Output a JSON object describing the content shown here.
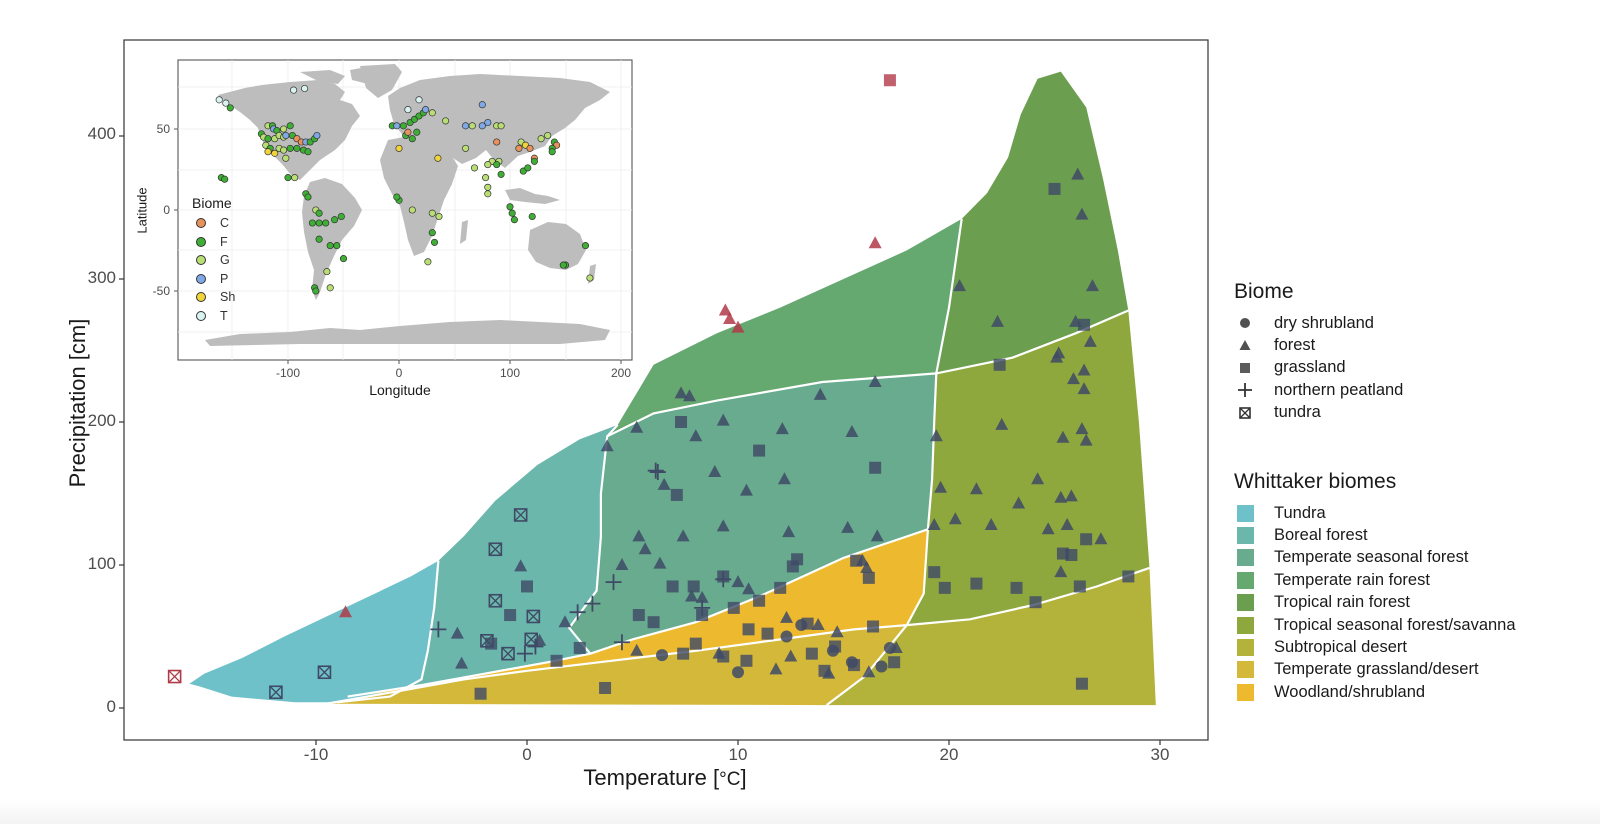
{
  "chart_data": {
    "type": "scatter",
    "title": "",
    "xlabel": "Temperature [°C]",
    "ylabel": "Precipitation [cm]",
    "xlim": [
      -18,
      32
    ],
    "ylim": [
      -20,
      445
    ],
    "x_ticks": [
      "-10",
      "0",
      "10",
      "20",
      "30"
    ],
    "y_ticks": [
      "0",
      "100",
      "200",
      "300",
      "400"
    ],
    "grid": false,
    "legend_position": "right",
    "background_regions": {
      "legend_title": "Whittaker biomes",
      "items": [
        {
          "name": "Tundra",
          "color": "#6FC1C9"
        },
        {
          "name": "Boreal forest",
          "color": "#6BB7AC"
        },
        {
          "name": "Temperate seasonal forest",
          "color": "#68AB8E"
        },
        {
          "name": "Temperate rain forest",
          "color": "#66A970"
        },
        {
          "name": "Tropical rain forest",
          "color": "#6C9E4F"
        },
        {
          "name": "Tropical seasonal forest/savanna",
          "color": "#8FA83D"
        },
        {
          "name": "Subtropical desert",
          "color": "#B3B23A"
        },
        {
          "name": "Temperate grassland/desert",
          "color": "#D4B83A"
        },
        {
          "name": "Woodland/shrubland",
          "color": "#EDB92F"
        }
      ]
    },
    "shape_legend": {
      "title": "Biome",
      "items": [
        {
          "name": "dry shrubland",
          "shape": "circle"
        },
        {
          "name": "forest",
          "shape": "triangle"
        },
        {
          "name": "grassland",
          "shape": "square"
        },
        {
          "name": "northern peatland",
          "shape": "plus"
        },
        {
          "name": "tundra",
          "shape": "boxed-x"
        }
      ]
    },
    "point_colors": {
      "inside": "#3F4A66",
      "outlier": "#B03A48"
    },
    "series": [
      {
        "name": "forest",
        "shape": "triangle",
        "points": [
          [
            -8.6,
            67,
            "outlier"
          ],
          [
            9.4,
            278,
            "outlier"
          ],
          [
            9.6,
            272,
            "outlier"
          ],
          [
            10,
            266,
            "outlier"
          ],
          [
            16.5,
            325,
            "outlier"
          ],
          [
            -0.3,
            99
          ],
          [
            -3.3,
            52
          ],
          [
            -3.1,
            31
          ],
          [
            0.6,
            47
          ],
          [
            1.8,
            60
          ],
          [
            3.8,
            183
          ],
          [
            7.3,
            220
          ],
          [
            9.3,
            201
          ],
          [
            8,
            190
          ],
          [
            5.2,
            196
          ],
          [
            12.1,
            195
          ],
          [
            15.4,
            193
          ],
          [
            7.7,
            218
          ],
          [
            8.9,
            165
          ],
          [
            10.4,
            152
          ],
          [
            12.2,
            160
          ],
          [
            16.5,
            228
          ],
          [
            13.9,
            219
          ],
          [
            6.5,
            156
          ],
          [
            5.3,
            120
          ],
          [
            7.4,
            120
          ],
          [
            9.3,
            127
          ],
          [
            12.4,
            123
          ],
          [
            15.2,
            126
          ],
          [
            16.6,
            120
          ],
          [
            4.5,
            100
          ],
          [
            5.6,
            111
          ],
          [
            6.3,
            101
          ],
          [
            7.8,
            78
          ],
          [
            8.3,
            77
          ],
          [
            10,
            88
          ],
          [
            10.5,
            83
          ],
          [
            12.3,
            63
          ],
          [
            13.8,
            58
          ],
          [
            14.7,
            53
          ],
          [
            15.9,
            103
          ],
          [
            16.1,
            98
          ],
          [
            12.5,
            36
          ],
          [
            14.3,
            24
          ],
          [
            9.1,
            38
          ],
          [
            5.2,
            40
          ],
          [
            11.8,
            27
          ],
          [
            19.4,
            190
          ],
          [
            19.6,
            154
          ],
          [
            19.3,
            128
          ],
          [
            20.3,
            132
          ],
          [
            21.3,
            153
          ],
          [
            22,
            128
          ],
          [
            22.5,
            198
          ],
          [
            23.3,
            143
          ],
          [
            24.2,
            160
          ],
          [
            25.3,
            147
          ],
          [
            25.8,
            148
          ],
          [
            24.7,
            125
          ],
          [
            25.6,
            128
          ],
          [
            20.5,
            295
          ],
          [
            22.3,
            270
          ],
          [
            25.1,
            245
          ],
          [
            25.2,
            248
          ],
          [
            26.1,
            373
          ],
          [
            26.3,
            345
          ],
          [
            26.8,
            295
          ],
          [
            26,
            270
          ],
          [
            26.7,
            256
          ],
          [
            26.4,
            236
          ],
          [
            26.4,
            223
          ],
          [
            25.9,
            230
          ],
          [
            26.3,
            195
          ],
          [
            26.5,
            187
          ],
          [
            25.4,
            189
          ],
          [
            25.3,
            95
          ],
          [
            27.2,
            118
          ],
          [
            16.2,
            25
          ],
          [
            17.5,
            42
          ]
        ]
      },
      {
        "name": "grassland",
        "shape": "square",
        "points": [
          [
            17.2,
            439,
            "outlier"
          ],
          [
            7.3,
            200
          ],
          [
            11,
            180
          ],
          [
            16.5,
            168
          ],
          [
            7.1,
            149
          ],
          [
            25,
            363
          ],
          [
            22.4,
            240
          ],
          [
            26.4,
            268
          ],
          [
            0,
            85
          ],
          [
            -0.8,
            65
          ],
          [
            -2.2,
            10
          ],
          [
            -1.7,
            45
          ],
          [
            3.7,
            14
          ],
          [
            1.4,
            33
          ],
          [
            2.5,
            42
          ],
          [
            5.3,
            65
          ],
          [
            6.9,
            85
          ],
          [
            7.9,
            85
          ],
          [
            9.3,
            92
          ],
          [
            9.8,
            70
          ],
          [
            11,
            75
          ],
          [
            12,
            84
          ],
          [
            12.6,
            99
          ],
          [
            8.3,
            65
          ],
          [
            10.5,
            55
          ],
          [
            11.4,
            52
          ],
          [
            13.3,
            59
          ],
          [
            7.4,
            38
          ],
          [
            9.3,
            36
          ],
          [
            10.4,
            33
          ],
          [
            13.5,
            38
          ],
          [
            14.1,
            26
          ],
          [
            15.5,
            30
          ],
          [
            16.4,
            57
          ],
          [
            17.4,
            32
          ],
          [
            8,
            45
          ],
          [
            6,
            60
          ],
          [
            14.6,
            43
          ],
          [
            19.3,
            95
          ],
          [
            19.8,
            84
          ],
          [
            21.3,
            87
          ],
          [
            23.2,
            84
          ],
          [
            24.1,
            74
          ],
          [
            26.2,
            85
          ],
          [
            26.3,
            17
          ],
          [
            25.4,
            108
          ],
          [
            25.8,
            107
          ],
          [
            26.5,
            118
          ],
          [
            28.5,
            92
          ],
          [
            15.6,
            103
          ],
          [
            16.2,
            91
          ],
          [
            12.8,
            104
          ]
        ]
      },
      {
        "name": "dry shrubland",
        "shape": "circle",
        "points": [
          [
            6.4,
            37
          ],
          [
            10,
            25
          ],
          [
            13,
            58
          ],
          [
            14.5,
            40
          ],
          [
            15.4,
            32
          ],
          [
            16.8,
            29
          ],
          [
            17.2,
            42
          ],
          [
            12.3,
            50
          ]
        ]
      },
      {
        "name": "northern peatland",
        "shape": "plus",
        "points": [
          [
            -4.2,
            55
          ],
          [
            -0.1,
            38
          ],
          [
            3.1,
            73
          ],
          [
            2.4,
            67
          ],
          [
            4.1,
            88
          ],
          [
            4.5,
            46
          ],
          [
            6.1,
            166
          ],
          [
            6.2,
            165
          ],
          [
            9.3,
            90
          ],
          [
            0.4,
            43
          ],
          [
            8.3,
            70
          ]
        ]
      },
      {
        "name": "tundra",
        "shape": "boxed-x",
        "points": [
          [
            -16.7,
            22,
            "outlier"
          ],
          [
            -11.9,
            11
          ],
          [
            -9.6,
            25
          ],
          [
            -0.3,
            135
          ],
          [
            -1.5,
            111
          ],
          [
            -1.5,
            75
          ],
          [
            -1.9,
            47
          ],
          [
            -0.9,
            38
          ],
          [
            0.3,
            64
          ],
          [
            0.2,
            48
          ]
        ]
      }
    ],
    "inset": {
      "type": "scatter-map",
      "xlabel": "Longitude",
      "ylabel": "Latitude",
      "x_ticks": [
        "-100",
        "0",
        "100",
        "200"
      ],
      "y_ticks": [
        "50",
        "0",
        "-50"
      ],
      "legend_title": "Biome",
      "legend": [
        {
          "code": "C",
          "color": "#E8915A"
        },
        {
          "code": "F",
          "color": "#3FAE34"
        },
        {
          "code": "G",
          "color": "#B8DE74"
        },
        {
          "code": "P",
          "color": "#7FA9E6"
        },
        {
          "code": "Sh",
          "color": "#F0D43A"
        },
        {
          "code": "T",
          "color": "#D8F3F0"
        }
      ]
    }
  },
  "axes": {
    "xlabel_main": "Temperature [",
    "xlabel_unit": "°C",
    "xlabel_close": "]",
    "ylabel": "Precipitation [cm]"
  }
}
